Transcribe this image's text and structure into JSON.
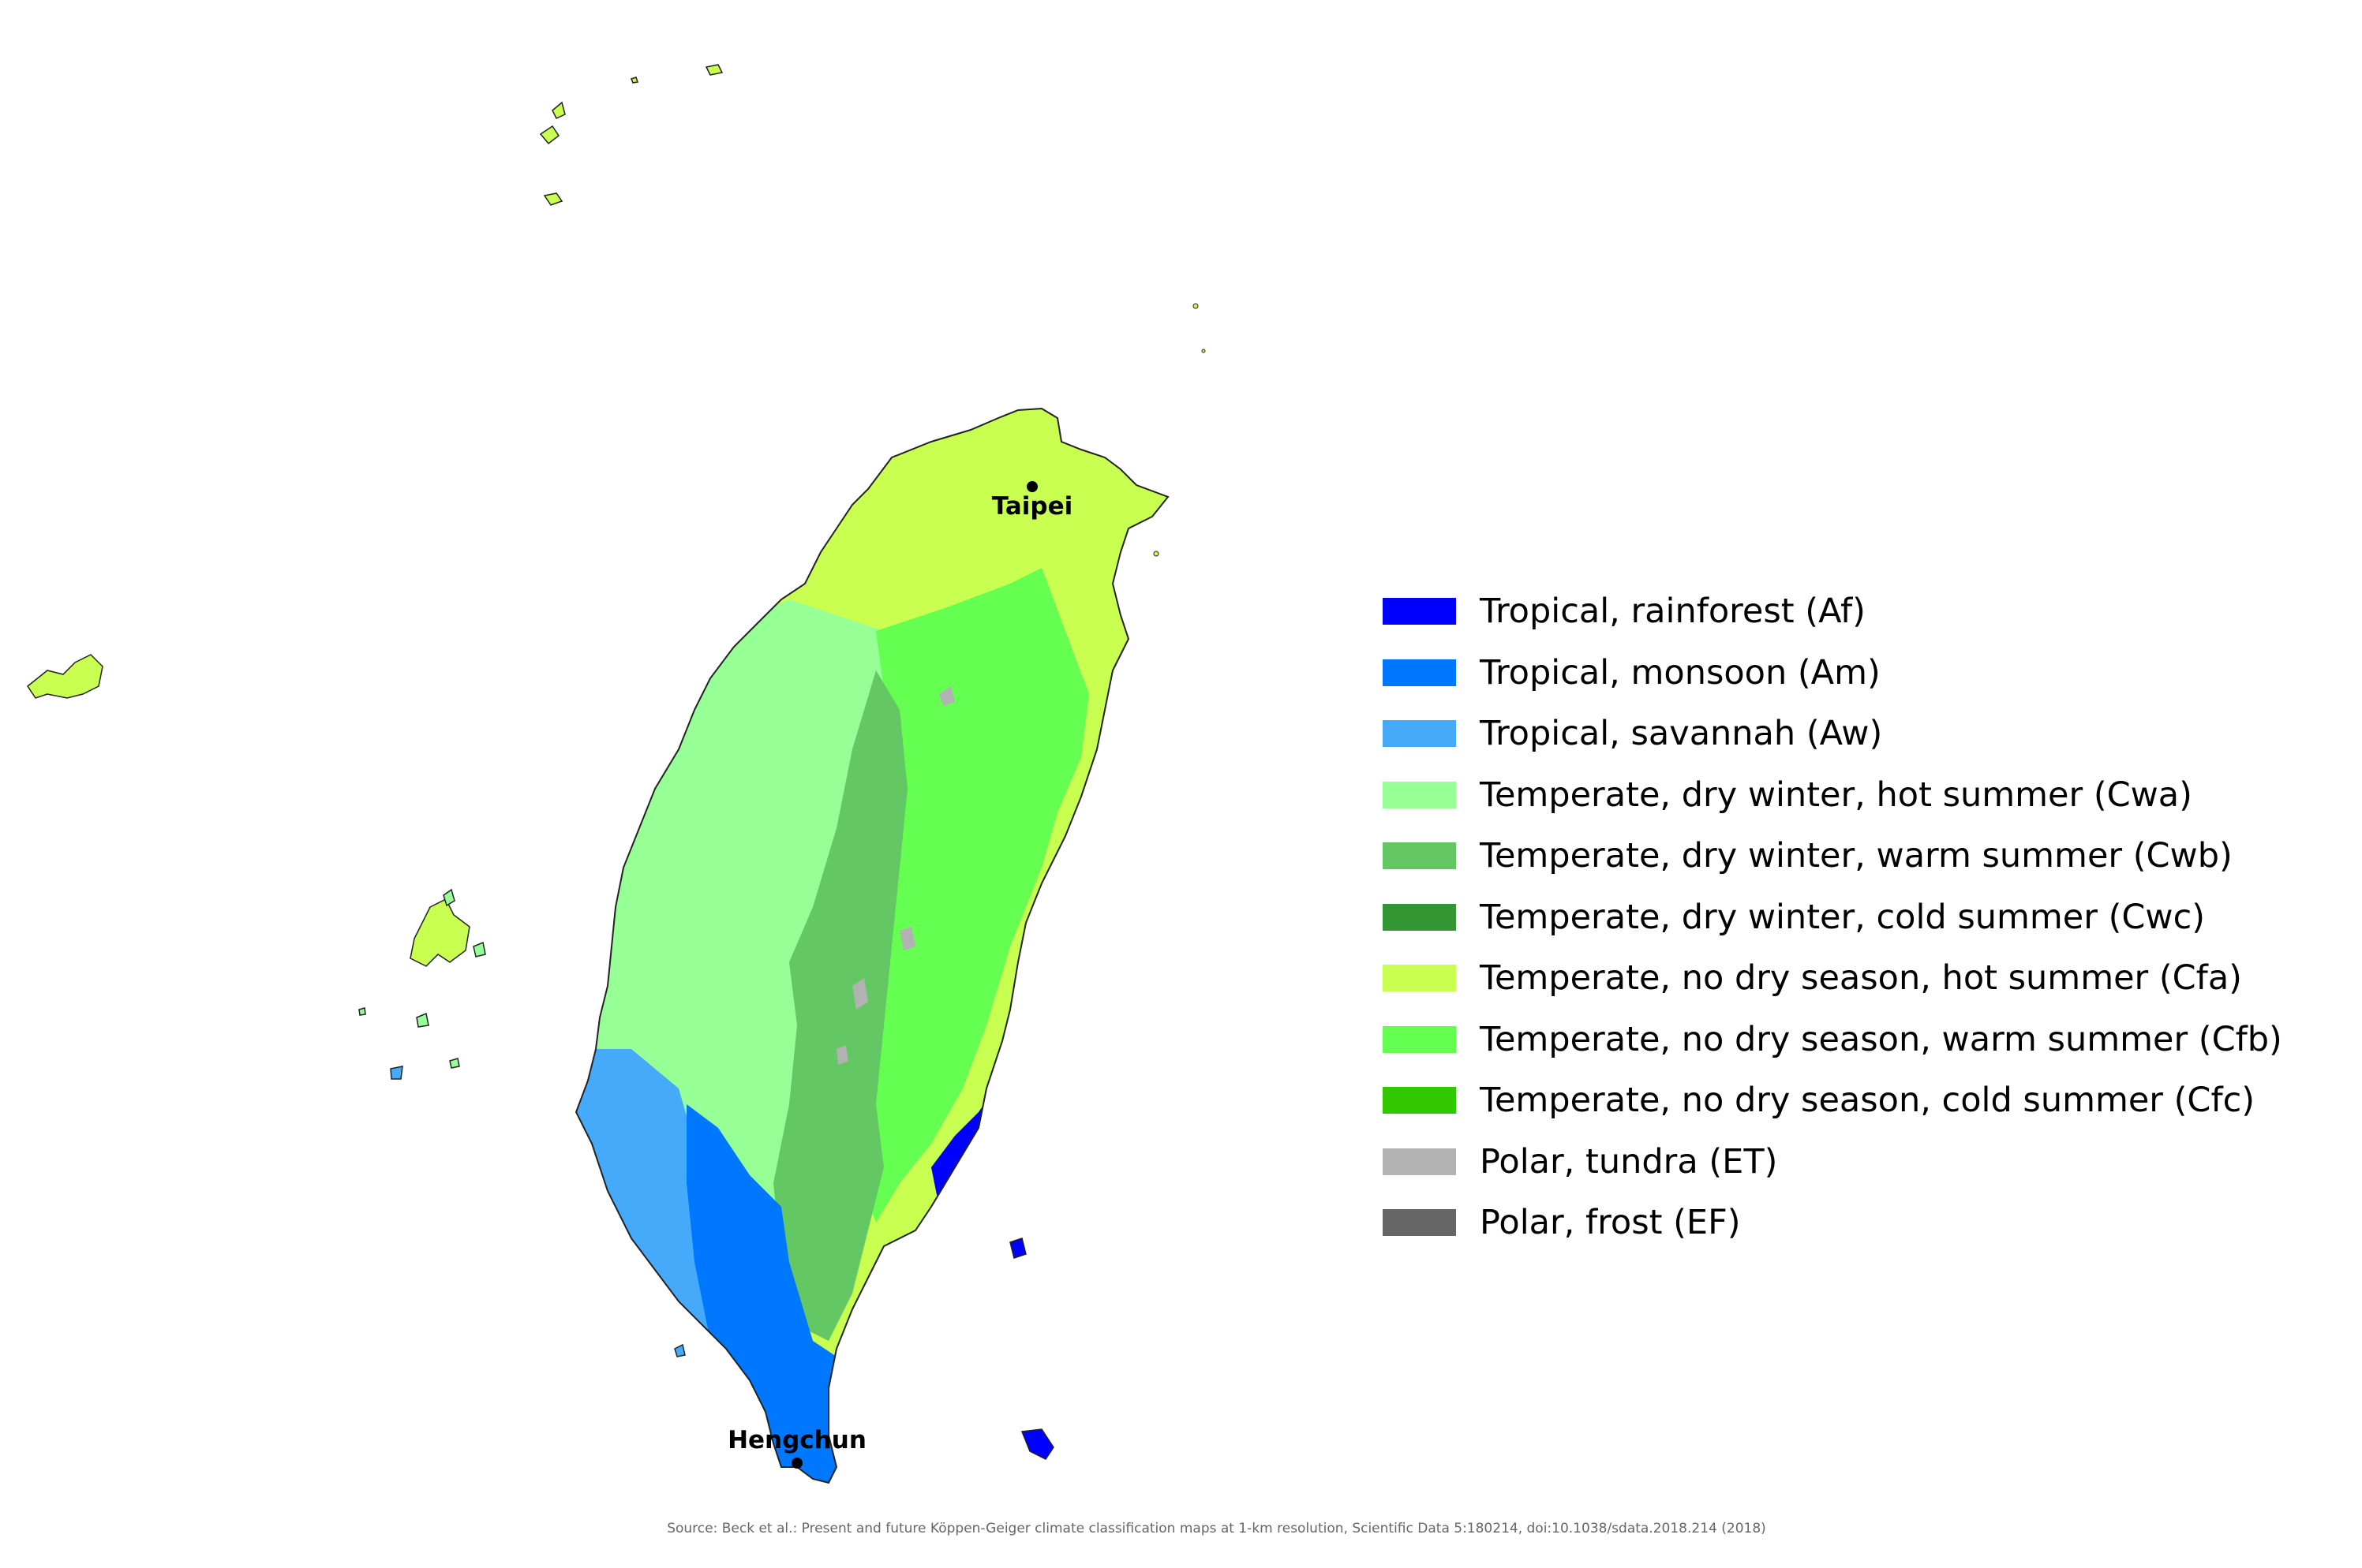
{
  "map": {
    "cities": [
      {
        "name": "Taipei"
      },
      {
        "name": "Hengchun"
      }
    ]
  },
  "legend": {
    "items": [
      {
        "label": "Tropical, rainforest (Af)",
        "color": "#0000fe"
      },
      {
        "label": "Tropical, monsoon (Am)",
        "color": "#0077ff"
      },
      {
        "label": "Tropical, savannah (Aw)",
        "color": "#46aafa"
      },
      {
        "label": "Temperate, dry winter, hot summer (Cwa)",
        "color": "#96ff96"
      },
      {
        "label": "Temperate, dry winter, warm summer (Cwb)",
        "color": "#63c764"
      },
      {
        "label": "Temperate, dry winter, cold summer (Cwc)",
        "color": "#329633"
      },
      {
        "label": "Temperate, no dry season, hot summer (Cfa)",
        "color": "#c8ff50"
      },
      {
        "label": "Temperate, no dry season, warm summer (Cfb)",
        "color": "#64ff50"
      },
      {
        "label": "Temperate, no dry season, cold summer (Cfc)",
        "color": "#32c800"
      },
      {
        "label": "Polar, tundra (ET)",
        "color": "#b2b2b2"
      },
      {
        "label": "Polar, frost (EF)",
        "color": "#666666"
      }
    ]
  },
  "source": "Source: Beck et al.: Present and future Köppen-Geiger climate classification maps at 1-km resolution, Scientific Data 5:180214, doi:10.1038/sdata.2018.214 (2018)"
}
